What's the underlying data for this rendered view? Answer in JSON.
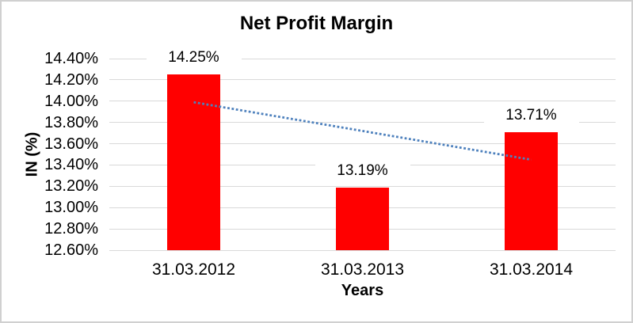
{
  "chart_data": {
    "type": "bar",
    "title": "Net Profit Margin",
    "xlabel": "Years",
    "ylabel": "IN (%)",
    "categories": [
      "31.03.2012",
      "31.03.2013",
      "31.03.2014"
    ],
    "values": [
      14.25,
      13.19,
      13.71
    ],
    "data_labels": [
      "14.25%",
      "13.19%",
      "13.71%"
    ],
    "ylim": [
      12.6,
      14.4
    ],
    "ytick_step": 0.2,
    "ytick_labels": [
      "14.40%",
      "14.20%",
      "14.00%",
      "13.80%",
      "13.60%",
      "13.40%",
      "13.20%",
      "13.00%",
      "12.80%",
      "12.60%"
    ],
    "grid": true,
    "legend": "none",
    "colors": {
      "bar": "#ff0000",
      "gridline": "#d9d9d9",
      "text": "#000000",
      "trendline": "#4e81bd",
      "frame_border": "#d0d0d0",
      "background": "#ffffff"
    },
    "trendline": {
      "type": "linear",
      "style": "dotted",
      "start_value": 13.99,
      "end_value": 13.45
    }
  }
}
